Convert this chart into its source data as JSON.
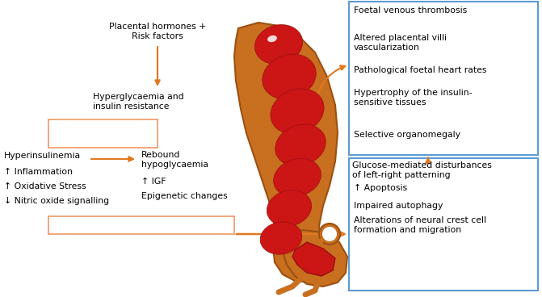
{
  "bg_color": "#ffffff",
  "arrow_color": "#e07820",
  "arrow_color_light": "#f0a070",
  "box_border_color": "#5b9bd5",
  "text_color": "#000000",
  "left_labels": [
    "Hyperinsulinemia",
    "↑ Inflammation",
    "↑ Oxidative Stress",
    "↓ Nitric oxide signalling"
  ],
  "center_top_label": "Placental hormones +\nRisk factors",
  "center_mid_label": "Hyperglycaemia and\ninsulin resistance",
  "center_bottom_labels": [
    "Rebound\nhypoglycaemia",
    "↑ IGF",
    "Epigenetic changes"
  ],
  "top_box_items": [
    "Foetal venous thrombosis",
    "Altered placental villi\nvascularization",
    "Pathological foetal heart rates",
    "Hypertrophy of the insulin-\nsensitive tissues",
    "Selective organomegaly"
  ],
  "bottom_box_title": "Glucose-mediated disturbances\nof left-right patterning",
  "bottom_box_items": [
    "↑ Apoptosis",
    "Impaired autophagy",
    "Alterations of neural crest cell\nformation and migration"
  ],
  "fig_width": 6.71,
  "fig_height": 3.68,
  "dpi": 100
}
